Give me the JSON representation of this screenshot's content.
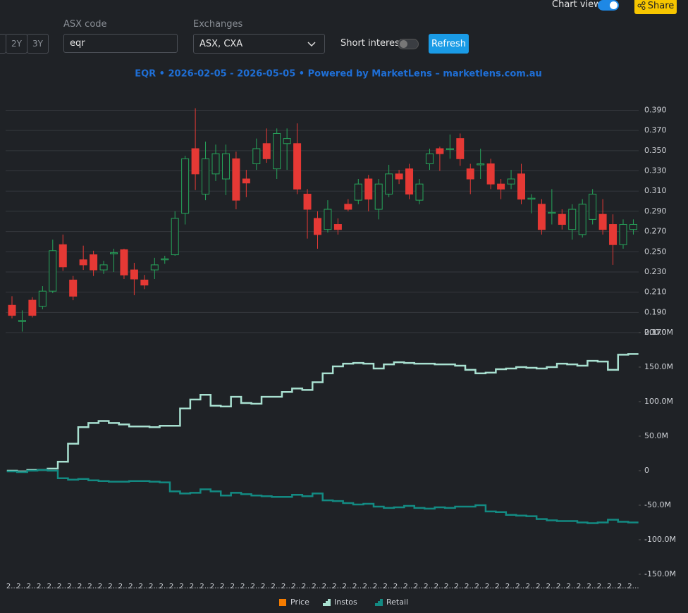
{
  "controls": {
    "chart_view": "Chart view",
    "share": "Share",
    "ranges": [
      "2Y",
      "3Y"
    ],
    "asx_code_label": "ASX code",
    "asx_code_value": "eqr",
    "exchanges_label": "Exchanges",
    "exchanges_value": "ASX, CXA",
    "short_interest": "Short interest",
    "refresh": "Refresh"
  },
  "chart_data": [
    {
      "type": "candlestick",
      "title": "EQR • 2026-02-05 - 2026-05-05 • Powered by MarketLens – marketlens.com.au",
      "name": "Price",
      "color": "#f57c00",
      "up_color": "#26a65b",
      "down_color": "#e53935",
      "grid": true,
      "categories": [
        "2…",
        "2…",
        "2…",
        "2…",
        "2…",
        "2…",
        "2…",
        "2…",
        "2…",
        "2…",
        "2…",
        "2…",
        "2…",
        "2…",
        "2…",
        "2…",
        "2…",
        "2…",
        "2…",
        "2…",
        "2…",
        "2…",
        "2…",
        "2…",
        "2…",
        "2…",
        "2…",
        "2…",
        "2…",
        "2…",
        "2…",
        "2…",
        "2…",
        "2…",
        "2…",
        "2…",
        "2…",
        "2…",
        "2…",
        "2…",
        "2…",
        "2…",
        "2…",
        "2…",
        "2…",
        "2…",
        "2…",
        "2…",
        "2…",
        "2…",
        "2…",
        "2…",
        "2…",
        "2…",
        "2…",
        "2…",
        "2…",
        "2…",
        "2…",
        "2…",
        "2…",
        "2…"
      ],
      "open": [
        0.197,
        0.181,
        0.202,
        0.196,
        0.211,
        0.257,
        0.222,
        0.242,
        0.247,
        0.232,
        0.248,
        0.252,
        0.232,
        0.222,
        0.232,
        0.242,
        0.247,
        0.288,
        0.352,
        0.307,
        0.327,
        0.322,
        0.342,
        0.322,
        0.337,
        0.357,
        0.332,
        0.357,
        0.357,
        0.307,
        0.283,
        0.272,
        0.277,
        0.297,
        0.301,
        0.322,
        0.292,
        0.307,
        0.327,
        0.332,
        0.301,
        0.337,
        0.352,
        0.351,
        0.362,
        0.332,
        0.336,
        0.337,
        0.317,
        0.317,
        0.327,
        0.302,
        0.297,
        0.288,
        0.287,
        0.272,
        0.267,
        0.282,
        0.287,
        0.277,
        0.257,
        0.272
      ],
      "high": [
        0.206,
        0.192,
        0.205,
        0.216,
        0.262,
        0.267,
        0.226,
        0.256,
        0.251,
        0.241,
        0.253,
        0.253,
        0.239,
        0.227,
        0.244,
        0.246,
        0.29,
        0.345,
        0.392,
        0.359,
        0.356,
        0.356,
        0.349,
        0.331,
        0.362,
        0.372,
        0.372,
        0.372,
        0.377,
        0.312,
        0.29,
        0.301,
        0.283,
        0.302,
        0.322,
        0.326,
        0.322,
        0.336,
        0.331,
        0.337,
        0.322,
        0.352,
        0.354,
        0.366,
        0.367,
        0.337,
        0.352,
        0.342,
        0.322,
        0.331,
        0.337,
        0.307,
        0.302,
        0.312,
        0.292,
        0.297,
        0.302,
        0.312,
        0.302,
        0.287,
        0.282,
        0.282
      ],
      "low": [
        0.184,
        0.171,
        0.185,
        0.193,
        0.209,
        0.231,
        0.202,
        0.232,
        0.226,
        0.228,
        0.23,
        0.223,
        0.207,
        0.213,
        0.223,
        0.238,
        0.246,
        0.277,
        0.311,
        0.301,
        0.32,
        0.306,
        0.292,
        0.304,
        0.331,
        0.338,
        0.322,
        0.331,
        0.307,
        0.263,
        0.253,
        0.269,
        0.267,
        0.29,
        0.297,
        0.29,
        0.282,
        0.304,
        0.317,
        0.302,
        0.297,
        0.331,
        0.33,
        0.342,
        0.335,
        0.307,
        0.322,
        0.312,
        0.302,
        0.312,
        0.297,
        0.288,
        0.267,
        0.277,
        0.272,
        0.262,
        0.264,
        0.277,
        0.267,
        0.237,
        0.253,
        0.267
      ],
      "close": [
        0.187,
        0.182,
        0.187,
        0.211,
        0.251,
        0.235,
        0.206,
        0.237,
        0.232,
        0.237,
        0.249,
        0.227,
        0.223,
        0.217,
        0.237,
        0.243,
        0.283,
        0.342,
        0.327,
        0.342,
        0.347,
        0.347,
        0.301,
        0.318,
        0.352,
        0.342,
        0.367,
        0.362,
        0.312,
        0.292,
        0.267,
        0.292,
        0.272,
        0.292,
        0.317,
        0.302,
        0.317,
        0.327,
        0.322,
        0.307,
        0.317,
        0.347,
        0.347,
        0.352,
        0.342,
        0.322,
        0.337,
        0.317,
        0.312,
        0.322,
        0.302,
        0.303,
        0.272,
        0.289,
        0.277,
        0.292,
        0.297,
        0.307,
        0.272,
        0.257,
        0.277,
        0.277
      ],
      "ylim": [
        0.17,
        0.398
      ],
      "yticks": [
        {
          "value": 0.17,
          "label": "0.170"
        },
        {
          "value": 0.19,
          "label": "0.190"
        },
        {
          "value": 0.21,
          "label": "0.210"
        },
        {
          "value": 0.23,
          "label": "0.230"
        },
        {
          "value": 0.25,
          "label": "0.250"
        },
        {
          "value": 0.27,
          "label": "0.270"
        },
        {
          "value": 0.29,
          "label": "0.290"
        },
        {
          "value": 0.31,
          "label": "0.310"
        },
        {
          "value": 0.33,
          "label": "0.330"
        },
        {
          "value": 0.35,
          "label": "0.350"
        },
        {
          "value": 0.37,
          "label": "0.370"
        },
        {
          "value": 0.39,
          "label": "0.390"
        }
      ]
    },
    {
      "type": "step",
      "ylim": [
        -150,
        200
      ],
      "yticks": [
        {
          "value": 200,
          "label": "200.0M"
        },
        {
          "value": 150,
          "label": "150.0M"
        },
        {
          "value": 100,
          "label": "100.0M"
        },
        {
          "value": 50,
          "label": "50.0M"
        },
        0,
        {
          "value": -50,
          "label": "-50.0M"
        },
        {
          "value": -100,
          "label": "-100.0M"
        },
        {
          "value": -150,
          "label": "-150.0M"
        }
      ],
      "series": [
        {
          "name": "Instos",
          "color": "#a8e0d0",
          "values": [
            0,
            -1,
            1,
            1,
            3,
            13,
            39,
            63,
            69,
            72,
            69,
            67,
            64,
            64,
            63,
            65,
            65,
            90,
            103,
            110,
            94,
            93,
            107,
            98,
            97,
            107,
            107,
            114,
            119,
            117,
            128,
            141,
            151,
            155,
            156,
            155,
            148,
            154,
            157,
            156,
            155,
            155,
            154,
            154,
            152,
            146,
            141,
            142,
            147,
            148,
            150,
            149,
            148,
            150,
            155,
            154,
            152,
            159,
            158,
            146,
            168,
            169
          ]
        },
        {
          "name": "Retail",
          "color": "#138a82",
          "values": [
            -1,
            -2,
            0,
            1,
            0,
            -11,
            -13,
            -12,
            -14,
            -15,
            -16,
            -16,
            -15,
            -15,
            -16,
            -17,
            -30,
            -33,
            -32,
            -27,
            -30,
            -36,
            -32,
            -34,
            -36,
            -37,
            -38,
            -38,
            -35,
            -37,
            -33,
            -43,
            -44,
            -47,
            -49,
            -48,
            -52,
            -54,
            -53,
            -51,
            -54,
            -55,
            -53,
            -54,
            -52,
            -52,
            -50,
            -59,
            -60,
            -64,
            -65,
            -66,
            -70,
            -72,
            -73,
            -73,
            -75,
            -76,
            -75,
            -71,
            -74,
            -75
          ]
        }
      ]
    }
  ]
}
